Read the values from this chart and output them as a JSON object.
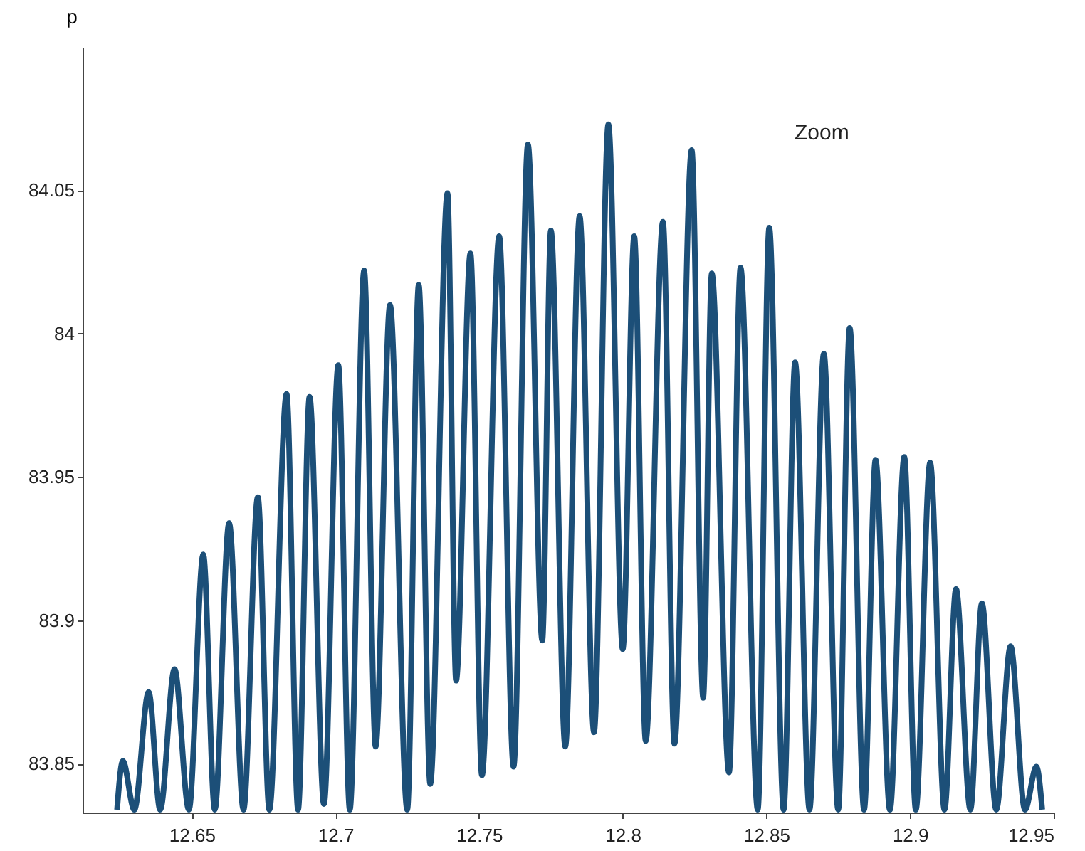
{
  "chart_data": {
    "type": "line",
    "ylabel": "p",
    "annotations": [
      "Zoom"
    ],
    "x": [
      12.624,
      12.626,
      12.63,
      12.635,
      12.639,
      12.644,
      12.649,
      12.654,
      12.658,
      12.663,
      12.668,
      12.673,
      12.677,
      12.683,
      12.687,
      12.691,
      12.696,
      12.701,
      12.705,
      12.71,
      12.714,
      12.719,
      12.725,
      12.729,
      12.733,
      12.739,
      12.742,
      12.747,
      12.751,
      12.757,
      12.762,
      12.767,
      12.772,
      12.775,
      12.78,
      12.785,
      12.79,
      12.795,
      12.8,
      12.804,
      12.808,
      12.814,
      12.818,
      12.824,
      12.828,
      12.831,
      12.837,
      12.841,
      12.847,
      12.851,
      12.856,
      12.86,
      12.865,
      12.87,
      12.875,
      12.879,
      12.884,
      12.888,
      12.893,
      12.898,
      12.902,
      12.907,
      12.912,
      12.916,
      12.921,
      12.925,
      12.93,
      12.935,
      12.94,
      12.944,
      12.946
    ],
    "series": [
      {
        "color": "#1c4f78",
        "values": [
          83.834,
          83.851,
          83.834,
          83.875,
          83.834,
          83.883,
          83.834,
          83.923,
          83.834,
          83.934,
          83.834,
          83.943,
          83.834,
          83.979,
          83.834,
          83.978,
          83.836,
          83.989,
          83.834,
          84.022,
          83.856,
          84.01,
          83.834,
          84.017,
          83.843,
          84.049,
          83.879,
          84.028,
          83.846,
          84.034,
          83.849,
          84.066,
          83.893,
          84.036,
          83.856,
          84.041,
          83.861,
          84.073,
          83.89,
          84.034,
          83.858,
          84.039,
          83.857,
          84.064,
          83.873,
          84.021,
          83.847,
          84.023,
          83.834,
          84.037,
          83.834,
          83.99,
          83.834,
          83.993,
          83.834,
          84.002,
          83.834,
          83.956,
          83.834,
          83.957,
          83.834,
          83.955,
          83.834,
          83.911,
          83.834,
          83.906,
          83.834,
          83.891,
          83.834,
          83.849,
          83.834
        ]
      }
    ],
    "xlim": [
      12.612,
      12.95
    ],
    "ylim": [
      83.833,
      84.1
    ],
    "xticks": [
      12.65,
      12.7,
      12.75,
      12.8,
      12.85,
      12.9,
      12.95
    ],
    "yticks": [
      83.85,
      83.9,
      83.95,
      84,
      84.05
    ],
    "grid": false,
    "line_style": "solid",
    "marker": "none"
  }
}
